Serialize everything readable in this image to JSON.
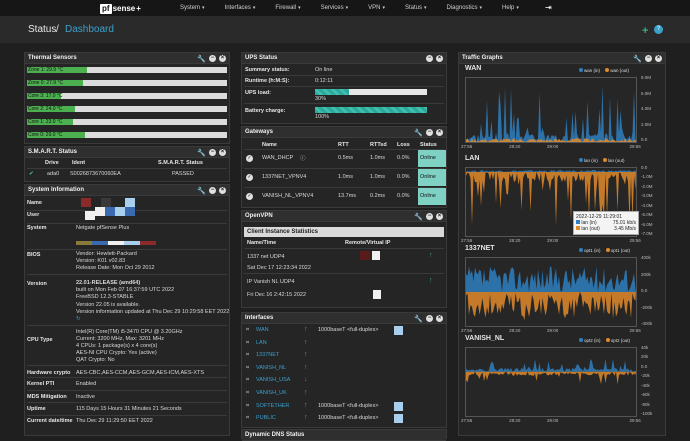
{
  "nav": {
    "logo_pf": "pf",
    "logo_name": "sense",
    "logo_plus": "+",
    "menu": [
      "System",
      "Interfaces",
      "Firewall",
      "Services",
      "VPN",
      "Status",
      "Diagnostics",
      "Help"
    ]
  },
  "breadcrumb": {
    "section": "Status",
    "sep": "/",
    "page": "Dashboard",
    "add": "+",
    "help": "?"
  },
  "thermal": {
    "title": "Thermal Sensors",
    "sensors": [
      {
        "label": "Zone 1: 29.9 °C",
        "value": 29.9
      },
      {
        "label": "Zone 0: 27.9 °C",
        "value": 27.9
      },
      {
        "label": "Core 3: 17.0 °C",
        "value": 17.0
      },
      {
        "label": "Core 2: 24.0 °C",
        "value": 24.0
      },
      {
        "label": "Core 1: 23.0 °C",
        "value": 23.0
      },
      {
        "label": "Core 0: 29.0 °C",
        "value": 29.0
      }
    ]
  },
  "smart": {
    "title": "S.M.A.R.T. Status",
    "headers": [
      "Drive",
      "Ident",
      "S.M.A.R.T. Status"
    ],
    "rows": [
      {
        "drive": "ada0",
        "ident": "S0026873670060EA",
        "status": "PASSED"
      }
    ]
  },
  "sysinfo": {
    "title": "System Information",
    "rows": [
      {
        "label": "Name",
        "lines": [
          ""
        ]
      },
      {
        "label": "User",
        "lines": [
          ""
        ]
      },
      {
        "label": "System",
        "lines": [
          "Netgate pfSense Plus"
        ]
      },
      {
        "label": "BIOS",
        "lines": [
          "Vendor: Hewlett-Packard",
          "Version: K01 v02.83",
          "Release Date: Mon Oct 29 2012"
        ]
      },
      {
        "label": "Version",
        "lines": [
          "22.01-RELEASE (amd64)",
          "built on Mon Feb 07 16:37:59 UTC 2022",
          "FreeBSD 12.3-STABLE",
          "Version 22.05 is available.",
          "Version information updated at Thu Dec 29 10:29:58 EET 2022"
        ]
      },
      {
        "label": "CPU Type",
        "lines": [
          "Intel(R) Core(TM) i5-3470 CPU @ 3.20GHz",
          "Current: 3200 MHz, Max: 3201 MHz",
          "4 CPUs: 1 package(s) x 4 core(s)",
          "AES-NI CPU Crypto: Yes (active)",
          "QAT Crypto: No"
        ]
      },
      {
        "label": "Hardware crypto",
        "lines": [
          "AES-CBC,AES-CCM,AES-GCM,AES-ICM,AES-XTS"
        ]
      },
      {
        "label": "Kernel PTI",
        "lines": [
          "Enabled"
        ]
      },
      {
        "label": "MDS Mitigation",
        "lines": [
          "Inactive"
        ]
      },
      {
        "label": "Uptime",
        "lines": [
          "115 Days 15 Hours 31 Minutes 21 Seconds"
        ]
      },
      {
        "label": "Current date/time",
        "lines": [
          "Thu Dec 29 11:29:50 EET 2022"
        ]
      }
    ]
  },
  "ups": {
    "title": "UPS Status",
    "rows": [
      {
        "label": "Summary status:",
        "value": "On line"
      },
      {
        "label": "Runtime (h:M:S):",
        "value": "0:12:11"
      },
      {
        "label": "UPS load:",
        "value": "30%",
        "pct": 30
      },
      {
        "label": "Battery charge:",
        "value": "100%",
        "pct": 100
      }
    ]
  },
  "gateways": {
    "title": "Gateways",
    "headers": [
      "Name",
      "RTT",
      "RTTsd",
      "Loss",
      "Status"
    ],
    "rows": [
      {
        "name": "WAN_DHCP",
        "rtt": "0.5ms",
        "rttsd": "1.0ms",
        "loss": "0.0%",
        "status": "Online"
      },
      {
        "name": "1337NET_VPNV4",
        "rtt": "1.0ms",
        "rttsd": "1.0ms",
        "loss": "0.0%",
        "status": "Online"
      },
      {
        "name": "VANISH_NL_VPNV4",
        "rtt": "13.7ms",
        "rttsd": "0.2ms",
        "loss": "0.0%",
        "status": "Online"
      }
    ]
  },
  "openvpn": {
    "title": "OpenVPN",
    "subtitle": "Client Instance Statistics",
    "headers": [
      "Name/Time",
      "Remote/Virtual IP"
    ],
    "rows": [
      {
        "name": "1337 net UDP4",
        "time": "Sat Dec 17 12:23:34 2022"
      },
      {
        "name": "IP Vanish NL UDP4",
        "time": "Fri Dec 16 2:42:15 2022"
      }
    ]
  },
  "interfaces": {
    "title": "Interfaces",
    "rows": [
      {
        "name": "WAN",
        "up": true,
        "media": "1000baseT <full-duplex>",
        "box": true
      },
      {
        "name": "LAN",
        "up": true,
        "media": "",
        "box": false
      },
      {
        "name": "1337NET",
        "up": true,
        "media": "",
        "box": false
      },
      {
        "name": "VANISH_NL",
        "up": true,
        "media": "",
        "box": false
      },
      {
        "name": "VANISH_USA",
        "up": false,
        "media": "",
        "box": false
      },
      {
        "name": "VANISH_UK",
        "up": true,
        "media": "",
        "box": false
      },
      {
        "name": "SOFTETHER",
        "up": true,
        "media": "1000baseT <full-duplex>",
        "box": true
      },
      {
        "name": "PUBLIC",
        "up": true,
        "media": "1000baseT <full-duplex>",
        "box": true
      }
    ]
  },
  "ddns": {
    "title": "Dynamic DNS Status"
  },
  "traffic": {
    "title": "Traffic Graphs",
    "graphs": [
      {
        "name": "WAN",
        "legend": [
          "wan (in)",
          "wan (out)"
        ],
        "yticks": [
          "8.0M",
          "6.0M",
          "4.0M",
          "2.0M",
          "0.0"
        ],
        "xticks": [
          "27:56",
          "28:20",
          "29:00",
          "29:56"
        ]
      },
      {
        "name": "LAN",
        "legend": [
          "lan (in)",
          "lan (out)"
        ],
        "yticks": [
          "0.0",
          "-1.0M",
          "-2.0M",
          "-3.0M",
          "-4.0M",
          "-5.0M",
          "-6.0M",
          "-7.0M"
        ],
        "xticks": [
          "27:56",
          "28:20",
          "29:00",
          "29:56"
        ]
      },
      {
        "name": "1337NET",
        "legend": [
          "opt1 (in)",
          "opt1 (out)"
        ],
        "yticks": [
          "400k",
          "200k",
          "0.0",
          "-200k",
          "-400k"
        ],
        "xticks": [
          "27:56",
          "28:20",
          "29:00",
          "29:56"
        ]
      },
      {
        "name": "VANISH_NL",
        "legend": [
          "opt2 (in)",
          "opt2 (out)"
        ],
        "yticks": [
          "40k",
          "20k",
          "0.0",
          "-20k",
          "-40k",
          "-60k",
          "-80k",
          "-100k"
        ],
        "xticks": [
          "27:56",
          "28:20",
          "29:00",
          "29:56"
        ]
      }
    ],
    "tooltip": {
      "time": "2022-12-29 11:29:01",
      "in_label": "lan (in)",
      "in_value": "75.01 kb/s",
      "out_label": "lan (out)",
      "out_value": "3.45 Mb/s"
    }
  },
  "colors": {
    "in": "#2f7fc1",
    "out": "#e08a2a",
    "online": "#7fd1c4",
    "ok": "#3ab07a",
    "down": "#d94545"
  }
}
